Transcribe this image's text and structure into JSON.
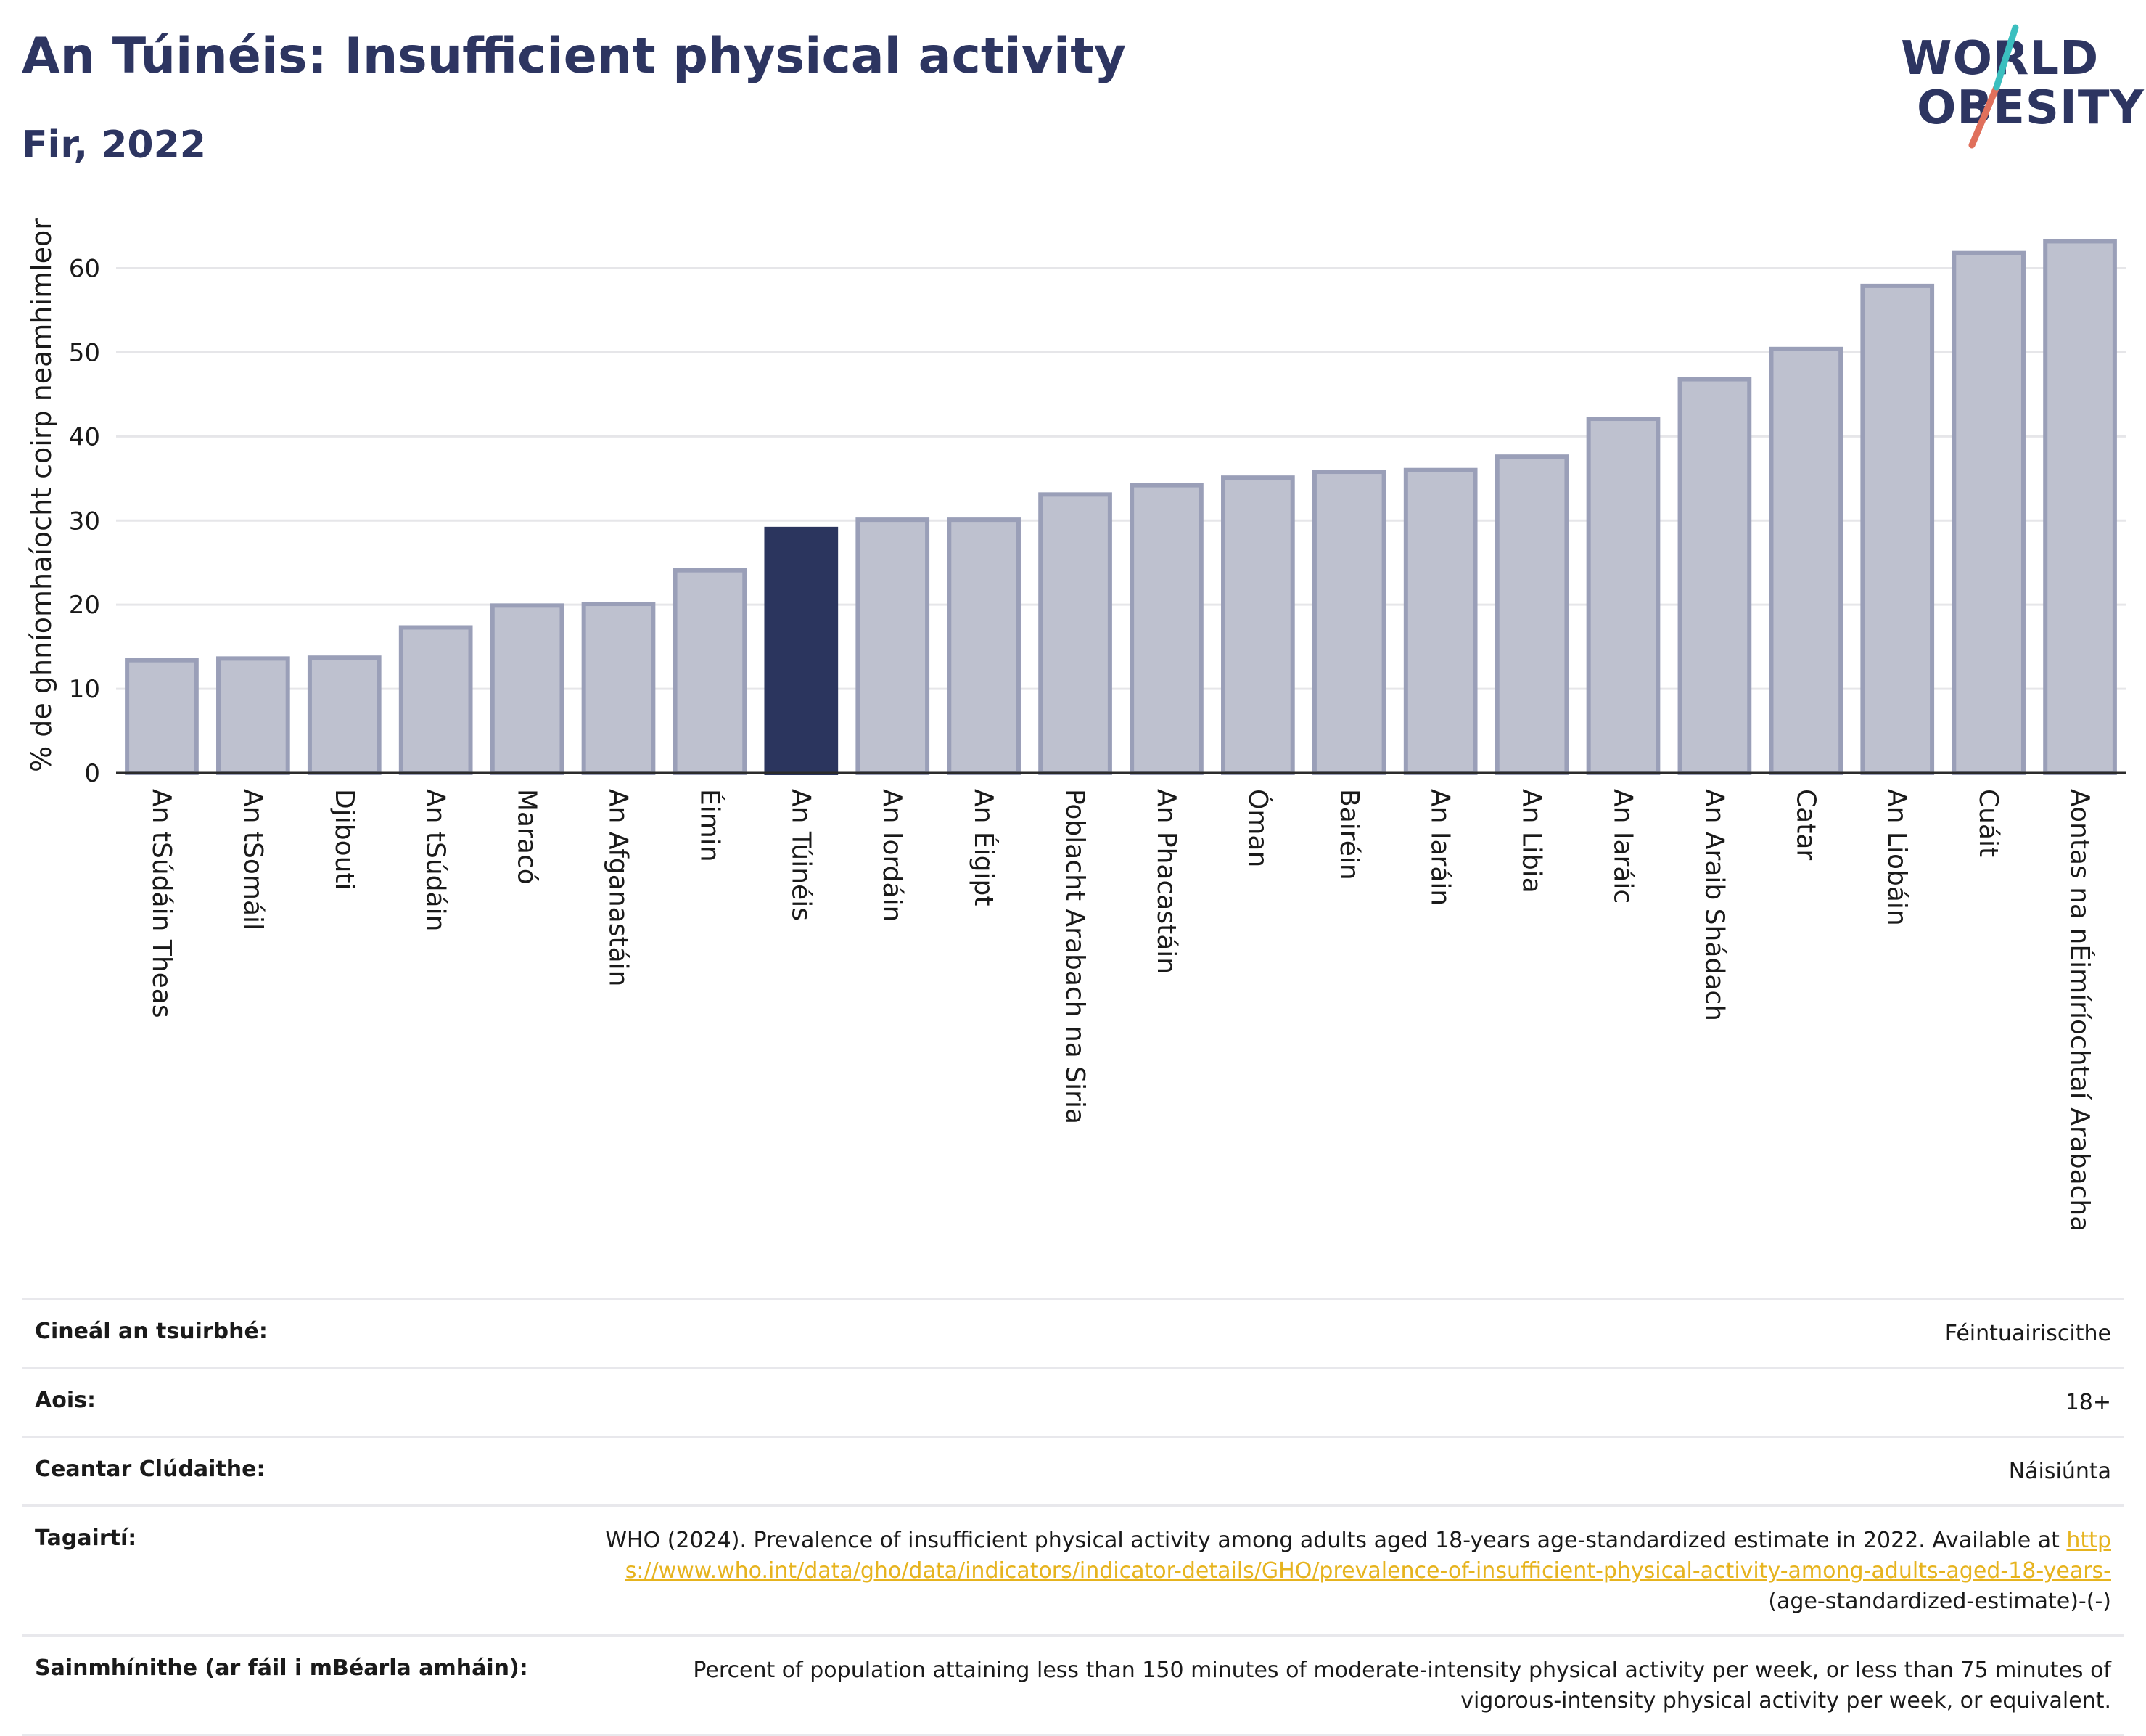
{
  "header": {
    "title": "An Túinéis: Insufficient physical activity",
    "subtitle": "Fir, 2022"
  },
  "logo": {
    "line1": "WORLD",
    "line2": "OBESITY"
  },
  "colors": {
    "highlight": "#2b355e",
    "bar": "#bec1cf",
    "bar_border": "#9a9fb8",
    "title": "#2d3561",
    "link": "#e6b31e"
  },
  "chart_data": {
    "type": "bar",
    "ylabel": "% de ghníomhaíocht coirp neamhimleor",
    "xlabel": "",
    "ylim": [
      0,
      66
    ],
    "yticks": [
      0,
      10,
      20,
      30,
      40,
      50,
      60
    ],
    "grid": true,
    "highlight": "An Túinéis",
    "categories": [
      "An tSúdáin Theas",
      "An tSomáil",
      "Djibouti",
      "An tSúdáin",
      "Maracó",
      "An Afganastáin",
      "Éimin",
      "An Túinéis",
      "An Iordáin",
      "An Éigipt",
      "Poblacht Arabach na Siria",
      "An Phacastáin",
      "Óman",
      "Bairéin",
      "An Iaráin",
      "An Libia",
      "An Iaráic",
      "An Araib Shádach",
      "Catar",
      "An Liobáin",
      "Cuáit",
      "Aontas na nÉimíríochtaí Arabacha"
    ],
    "values": [
      13.4,
      13.6,
      13.7,
      17.3,
      19.9,
      20.1,
      24.1,
      29.0,
      30.1,
      30.1,
      33.1,
      34.2,
      35.1,
      35.8,
      36.0,
      37.6,
      42.1,
      46.8,
      50.4,
      57.9,
      61.8,
      63.2
    ]
  },
  "meta": {
    "survey_type": {
      "label": "Cineál an tsuirbhé:",
      "value": "Féintuairiscithe"
    },
    "age": {
      "label": "Aois:",
      "value": "18+"
    },
    "coverage": {
      "label": "Ceantar Clúdaithe:",
      "value": "Náisiúnta"
    },
    "references": {
      "label": "Tagairtí:",
      "text": "WHO (2024). Prevalence of insufficient physical activity among adults aged 18-years age-standardized estimate in 2022. Available at",
      "link": "https://www.who.int/data/gho/data/indicators/indicator-details/GHO/prevalence-of-insufficient-physical-activity-among-adults-aged-18-years-",
      "suffix": "(age-standardized-estimate)-(-)"
    },
    "definitions": {
      "label": "Sainmhínithe (ar fáil i mBéarla amháin):",
      "value": "Percent of population attaining less than 150 minutes of moderate-intensity physical activity per week, or less than 75 minutes of vigorous-intensity physical activity per week, or equivalent."
    }
  }
}
